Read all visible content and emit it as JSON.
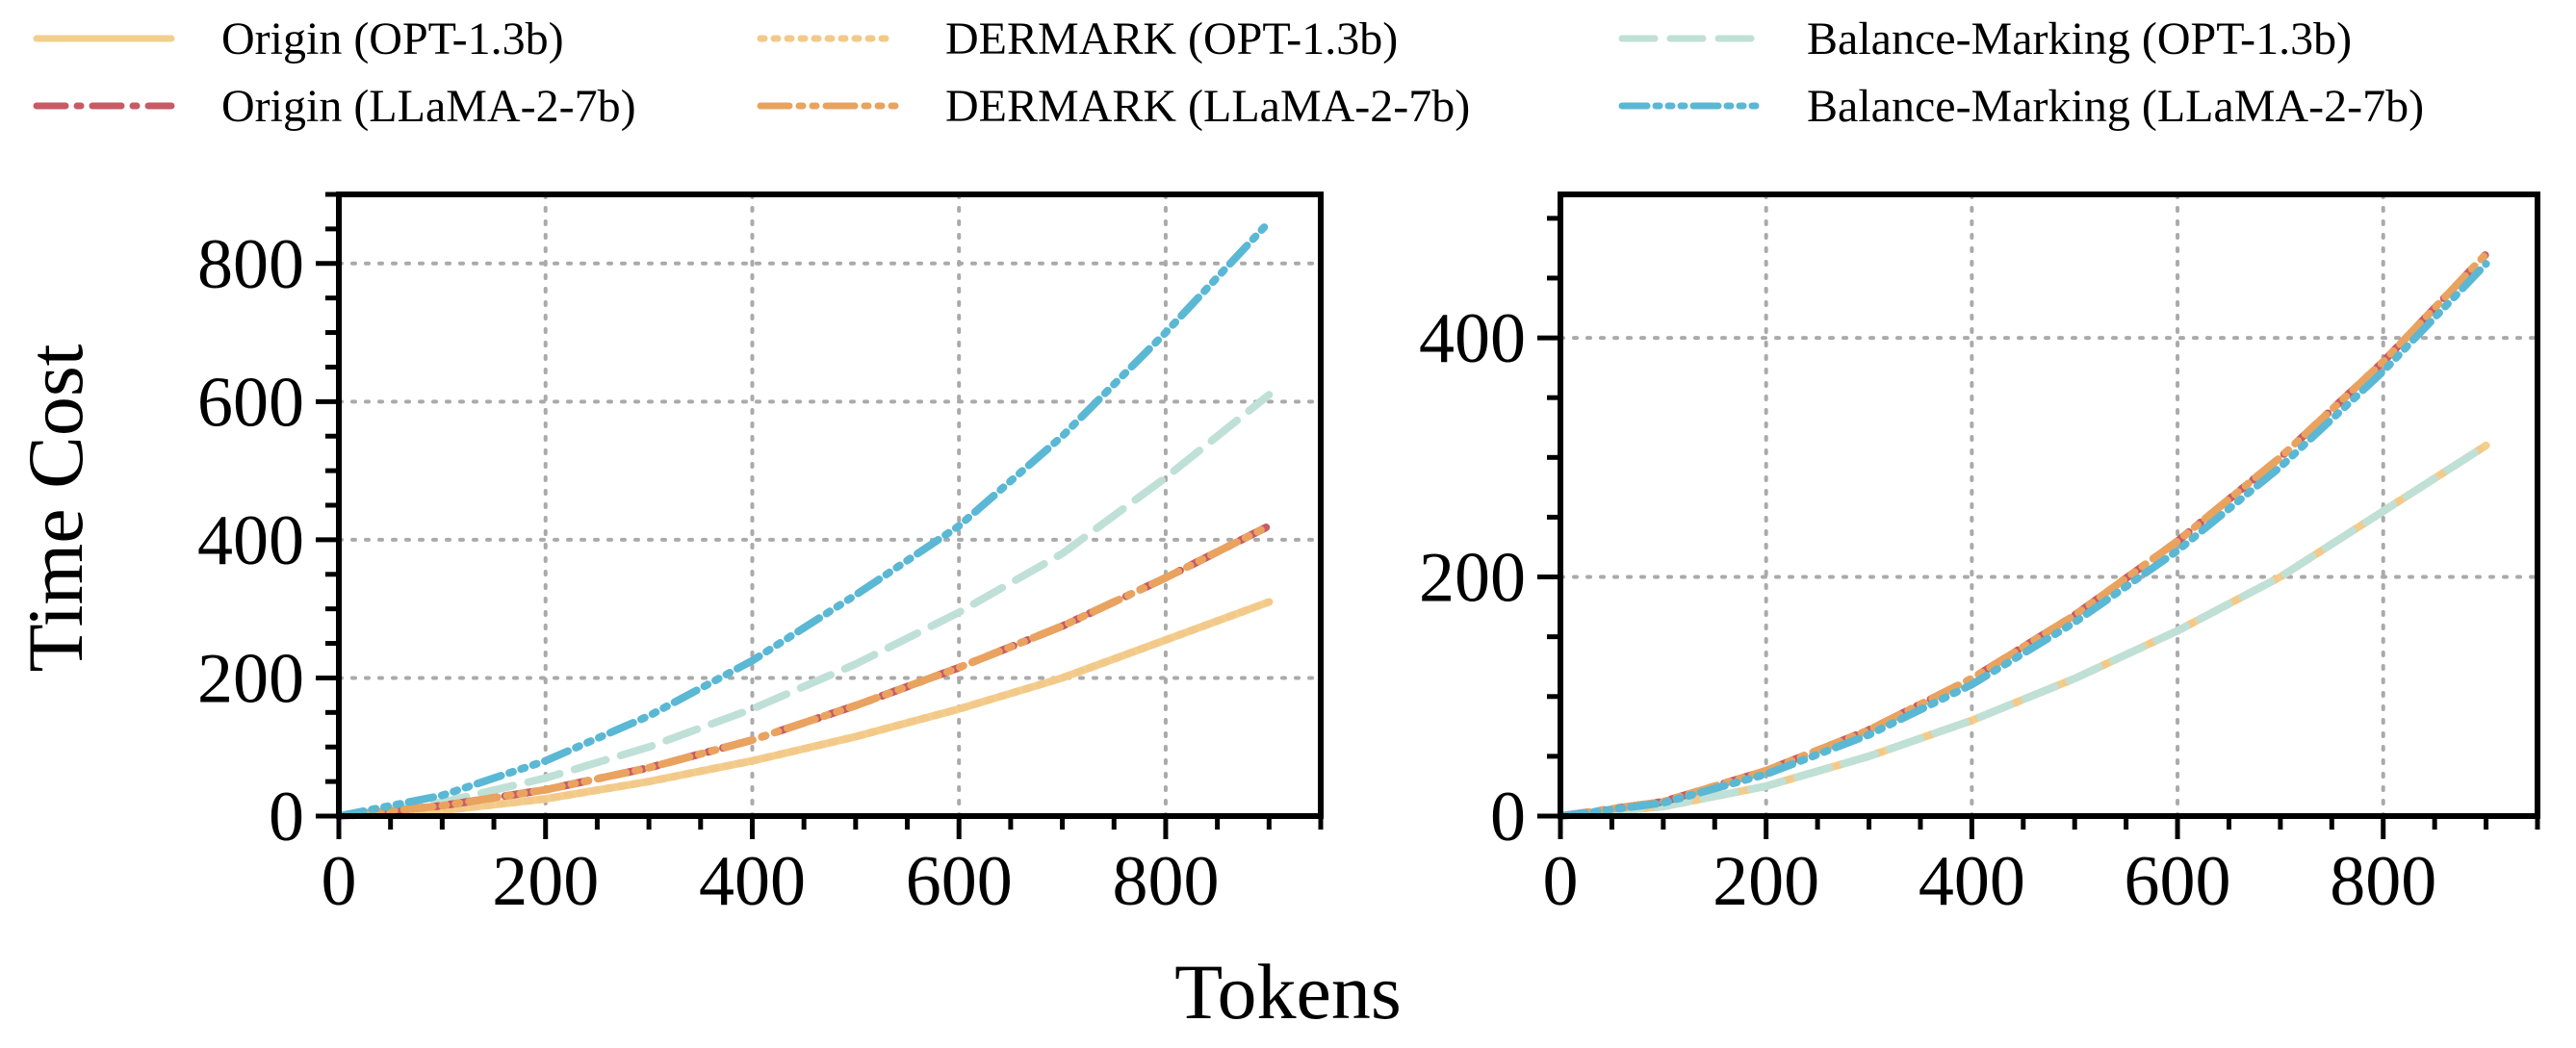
{
  "chart_data": [
    {
      "type": "line",
      "panel": "left",
      "title": "",
      "xlabel": "Tokens",
      "ylabel": "Time Cost",
      "xlim": [
        0,
        950
      ],
      "ylim": [
        0,
        900
      ],
      "xticks": [
        0,
        200,
        400,
        600,
        800
      ],
      "yticks": [
        0,
        200,
        400,
        600,
        800
      ],
      "grid": true,
      "x": [
        0,
        100,
        200,
        300,
        400,
        500,
        600,
        700,
        800,
        900
      ],
      "series": [
        {
          "name": "Origin (OPT-1.3b)",
          "key": "origin_opt",
          "values": [
            0,
            8,
            25,
            50,
            80,
            115,
            155,
            200,
            255,
            310
          ]
        },
        {
          "name": "Origin (LLaMA-2-7b)",
          "key": "origin_llama",
          "values": [
            0,
            15,
            38,
            70,
            110,
            160,
            215,
            275,
            345,
            420
          ]
        },
        {
          "name": "DERMARK (OPT-1.3b)",
          "key": "dermark_opt",
          "values": [
            0,
            8,
            25,
            50,
            80,
            115,
            155,
            200,
            255,
            310
          ]
        },
        {
          "name": "DERMARK (LLaMA-2-7b)",
          "key": "dermark_llama",
          "values": [
            0,
            15,
            38,
            70,
            110,
            160,
            215,
            275,
            345,
            420
          ]
        },
        {
          "name": "Balance-Marking (OPT-1.3b)",
          "key": "balance_opt",
          "values": [
            0,
            20,
            55,
            100,
            155,
            220,
            295,
            380,
            490,
            610
          ]
        },
        {
          "name": "Balance-Marking (LLaMA-2-7b)",
          "key": "balance_llama",
          "values": [
            0,
            30,
            80,
            145,
            225,
            320,
            420,
            550,
            700,
            860
          ]
        }
      ]
    },
    {
      "type": "line",
      "panel": "right",
      "title": "",
      "xlabel": "Tokens",
      "ylabel": "",
      "xlim": [
        0,
        950
      ],
      "ylim": [
        0,
        520
      ],
      "xticks": [
        0,
        200,
        400,
        600,
        800
      ],
      "yticks": [
        0,
        200,
        400
      ],
      "grid": true,
      "x": [
        0,
        100,
        200,
        300,
        400,
        500,
        600,
        700,
        800,
        900
      ],
      "series": [
        {
          "name": "Origin (OPT-1.3b)",
          "key": "origin_opt",
          "values": [
            0,
            8,
            25,
            50,
            80,
            115,
            155,
            200,
            255,
            310
          ]
        },
        {
          "name": "Origin (LLaMA-2-7b)",
          "key": "origin_llama",
          "values": [
            0,
            12,
            38,
            72,
            115,
            168,
            230,
            300,
            380,
            470
          ]
        },
        {
          "name": "DERMARK (OPT-1.3b)",
          "key": "dermark_opt",
          "values": [
            0,
            8,
            25,
            50,
            80,
            115,
            155,
            200,
            255,
            310
          ]
        },
        {
          "name": "DERMARK (LLaMA-2-7b)",
          "key": "dermark_llama",
          "values": [
            0,
            12,
            38,
            72,
            115,
            168,
            230,
            300,
            380,
            470
          ]
        },
        {
          "name": "Balance-Marking (OPT-1.3b)",
          "key": "balance_opt",
          "values": [
            0,
            8,
            25,
            50,
            80,
            115,
            155,
            200,
            255,
            310
          ]
        },
        {
          "name": "Balance-Marking (LLaMA-2-7b)",
          "key": "balance_llama",
          "values": [
            0,
            11,
            35,
            68,
            110,
            162,
            222,
            292,
            372,
            462
          ]
        }
      ]
    }
  ],
  "legend": [
    {
      "key": "origin_opt",
      "label": "Origin (OPT-1.3b)",
      "color": "#f2cf8c",
      "style": "solid"
    },
    {
      "key": "origin_llama",
      "label": "Origin (LLaMA-2-7b)",
      "color": "#c85a66",
      "style": "dashdot"
    },
    {
      "key": "dermark_opt",
      "label": "DERMARK (OPT-1.3b)",
      "color": "#f3c98a",
      "style": "dotted"
    },
    {
      "key": "dermark_llama",
      "label": "DERMARK (LLaMA-2-7b)",
      "color": "#e9a35f",
      "style": "dashdotdot"
    },
    {
      "key": "balance_opt",
      "label": "Balance-Marking (OPT-1.3b)",
      "color": "#bfe0d6",
      "style": "dashed"
    },
    {
      "key": "balance_llama",
      "label": "Balance-Marking (LLaMA-2-7b)",
      "color": "#5ab8d4",
      "style": "dashdotdotdot"
    }
  ]
}
